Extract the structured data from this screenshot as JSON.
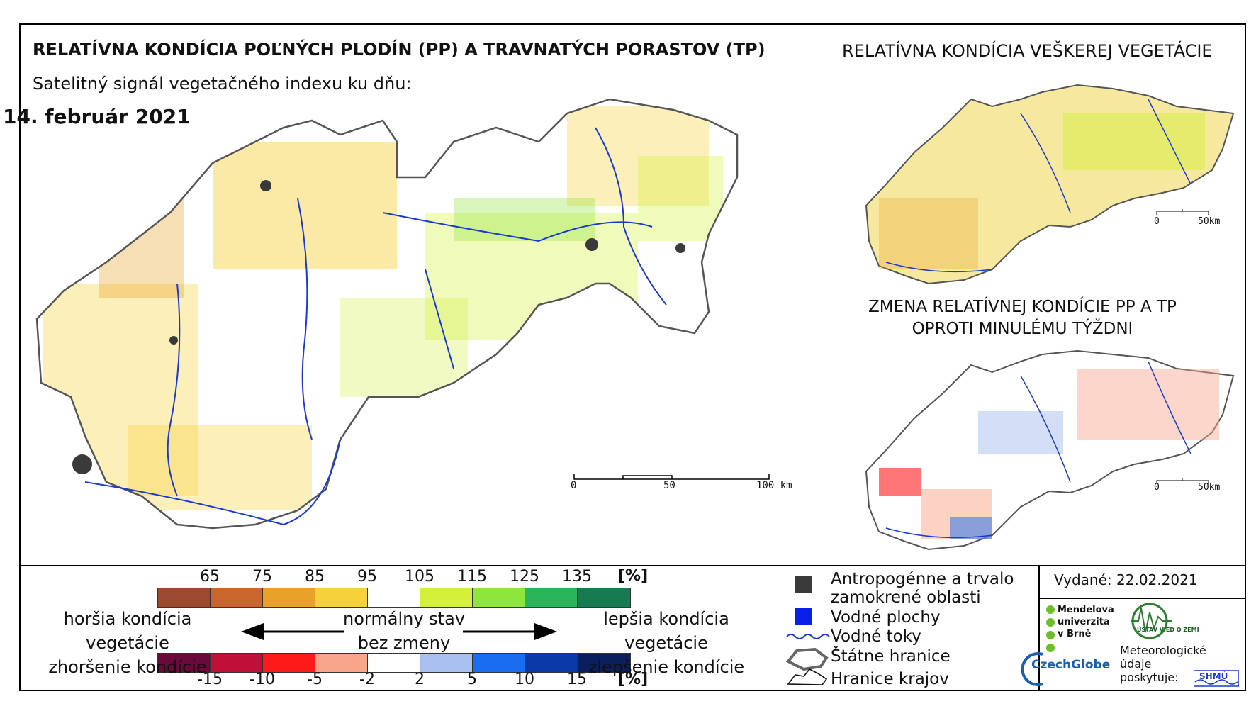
{
  "titles": {
    "main": "RELATÍVNA KONDÍCIA POĽNÝCH PLODÍN (PP) A TRAVNATÝCH PORASTOV (TP)",
    "subtitle": "Satelitný signál vegetačného indexu ku dňu:",
    "date": "14. február 2021",
    "right_top": "RELATÍVNA KONDÍCIA VEŠKEREJ VEGETÁCIE",
    "right_change_line1": "ZMENA RELATÍVNEJ KONDÍCIE PP A TP",
    "right_change_line2": "OPROTI MINULÉMU TÝŽDNI"
  },
  "scalebars": {
    "main": {
      "labels": [
        "0",
        "50",
        "100 km"
      ]
    },
    "small_top": {
      "labels": [
        "0",
        "50km"
      ]
    },
    "small_bottom": {
      "labels": [
        "0",
        "50km"
      ]
    }
  },
  "legend_condition": {
    "ticks": [
      "65",
      "75",
      "85",
      "95",
      "105",
      "115",
      "125",
      "135"
    ],
    "unit": "[%]",
    "colors": [
      "#9c4a2e",
      "#c8662e",
      "#e8a22a",
      "#f7d13a",
      "#ffffff",
      "#d4f03a",
      "#8ee63c",
      "#2bb55a",
      "#177a50"
    ]
  },
  "legend_change": {
    "ticks": [
      "-15",
      "-10",
      "-5",
      "-2",
      "2",
      "5",
      "10",
      "15"
    ],
    "unit": "[%]",
    "colors": [
      "#6b0a3a",
      "#c0103a",
      "#ff1a1a",
      "#f8a58a",
      "#ffffff",
      "#a8bff0",
      "#1a6cf0",
      "#0a3aa8",
      "#0a1f5e"
    ]
  },
  "legend_labels": {
    "left_line1": "horšia kondícia vegetácie",
    "left_line2": "zhoršenie kondície",
    "center_line1": "normálny stav",
    "center_line2": "bez zmeny",
    "right_line1": "lepšia kondícia vegetácie",
    "right_line2": "zlepšenie kondície"
  },
  "map_key": {
    "anthropogenic_line1": "Antropogénne a trvalo",
    "anthropogenic_line2": "zamokrené oblasti",
    "water_bodies": "Vodné plochy",
    "rivers": "Vodné toky",
    "state_border": "Štátne hranice",
    "region_border": "Hranice krajov",
    "colors": {
      "anthropogenic": "#3a3a3a",
      "water": "#0a1fe8",
      "river": "#1a3ad0"
    }
  },
  "issued": "Vydané: 22.02.2021",
  "logos": {
    "mendel_line1": "Mendelova",
    "mendel_line2": "univerzita",
    "mendel_line3": "v Brně",
    "czechglobe": "CzechGlobe",
    "uvz": "ÚSTAV VIED O ZEMI",
    "meteo_line1": "Meteorologické",
    "meteo_line2": "údaje",
    "meteo_line3": "poskytuje:",
    "shmu": "SHMÚ"
  }
}
